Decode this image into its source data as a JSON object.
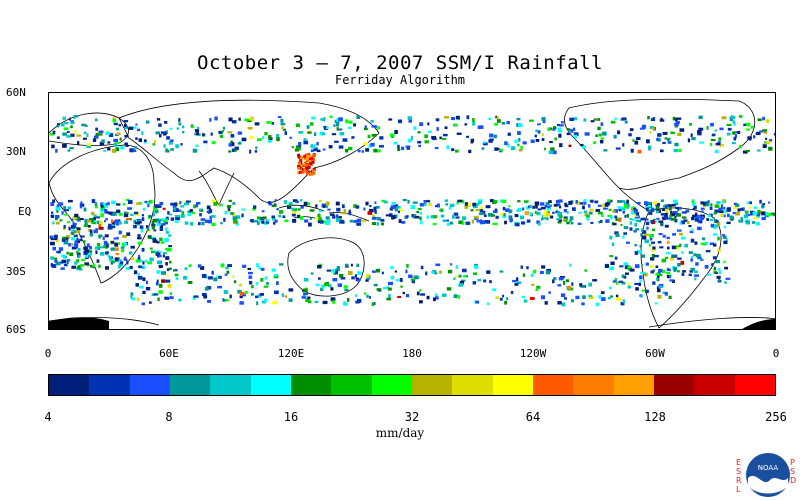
{
  "title": "October 3 – 7, 2007 SSM/I Rainfall",
  "subtitle": "Ferriday Algorithm",
  "lat_labels": [
    "60N",
    "30N",
    "EQ",
    "30S",
    "60S"
  ],
  "lon_labels": [
    "0",
    "60E",
    "120E",
    "180",
    "120W",
    "60W",
    "0"
  ],
  "colorbar": {
    "colors": [
      "#001f7a",
      "#0033b3",
      "#1a4fff",
      "#009999",
      "#00c8c8",
      "#00ffff",
      "#008f00",
      "#00c000",
      "#00ff00",
      "#b3b300",
      "#dede00",
      "#ffff00",
      "#ff5a00",
      "#ff7d00",
      "#ffa000",
      "#9b0000",
      "#c80000",
      "#ff0000"
    ],
    "tick_labels": [
      "4",
      "8",
      "16",
      "32",
      "64",
      "128",
      "256"
    ],
    "units": "mm/day"
  },
  "logo": {
    "org_left": "ESRL",
    "org_right": "PSD",
    "badge": "NOAA",
    "icon": "noaa-logo-icon"
  }
}
